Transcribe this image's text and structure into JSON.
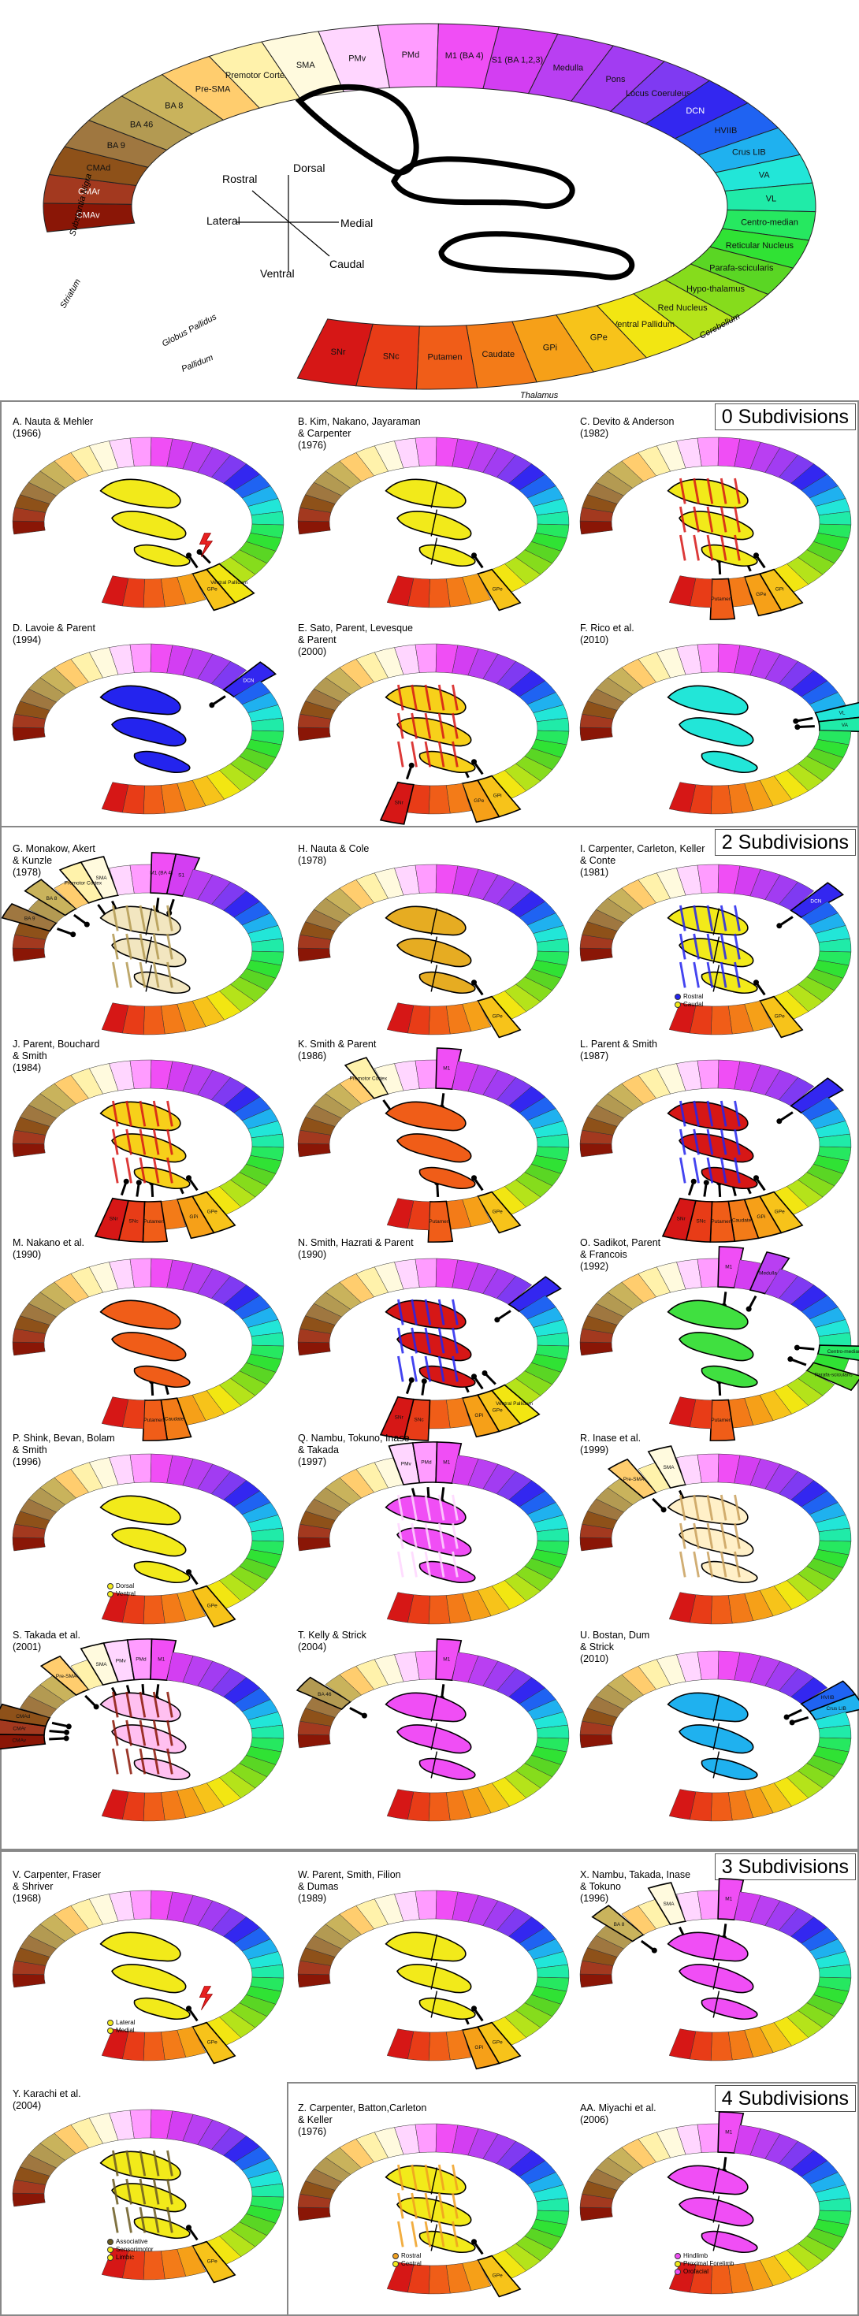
{
  "ring_regions": [
    {
      "id": "cmav",
      "label": "CMAv",
      "color": "#8a1606"
    },
    {
      "id": "cmar",
      "label": "CMAr",
      "color": "#a3391f"
    },
    {
      "id": "cmad",
      "label": "CMAd",
      "color": "#8e5119"
    },
    {
      "id": "ba9",
      "label": "BA 9",
      "color": "#9f7740"
    },
    {
      "id": "ba46",
      "label": "BA 46",
      "color": "#b39a52"
    },
    {
      "id": "ba8",
      "label": "BA 8",
      "color": "#c9b35c"
    },
    {
      "id": "presma",
      "label": "Pre-SMA",
      "color": "#ffcd6e"
    },
    {
      "id": "premotor",
      "label": "Premotor Cortex",
      "color": "#fff2ab"
    },
    {
      "id": "sma",
      "label": "SMA",
      "color": "#fffade"
    },
    {
      "id": "pmv",
      "label": "PMv",
      "color": "#ffd6ff"
    },
    {
      "id": "pmd",
      "label": "PMd",
      "color": "#ff9cff"
    },
    {
      "id": "m1",
      "label": "M1 (BA 4)",
      "color": "#f04ef5"
    },
    {
      "id": "s1",
      "label": "S1 (BA 1,2,3)",
      "color": "#d33ef2"
    },
    {
      "id": "medulla",
      "label": "Medulla",
      "color": "#b93ff2"
    },
    {
      "id": "pons",
      "label": "Pons",
      "color": "#a23cf2"
    },
    {
      "id": "locus",
      "label": "Locus Coeruleus",
      "color": "#7f3af2"
    },
    {
      "id": "dcn",
      "label": "DCN",
      "color": "#3327f0"
    },
    {
      "id": "hviib",
      "label": "HVIIB",
      "color": "#1f63f2"
    },
    {
      "id": "cruslib",
      "label": "Crus LIB",
      "color": "#1fb1ef"
    },
    {
      "id": "va",
      "label": "VA",
      "color": "#22e6d8"
    },
    {
      "id": "vl",
      "label": "VL",
      "color": "#20eba8"
    },
    {
      "id": "centromedian",
      "label": "Centro-median",
      "color": "#26e860"
    },
    {
      "id": "reticular",
      "label": "Reticular Nucleus",
      "color": "#30e234"
    },
    {
      "id": "parafascicularis",
      "label": "Parafa-scicularis",
      "color": "#5ad624"
    },
    {
      "id": "hypothalamus",
      "label": "Hypo-thalamus",
      "color": "#86dc1c"
    },
    {
      "id": "rednucleus",
      "label": "Red Nucleus",
      "color": "#b5e31a"
    },
    {
      "id": "ventralpallidum",
      "label": "Ventral Pallidum",
      "color": "#f2e612"
    },
    {
      "id": "gpe",
      "label": "GPe",
      "color": "#f7c31a"
    },
    {
      "id": "gpi",
      "label": "GPi",
      "color": "#f6a018"
    },
    {
      "id": "caudate",
      "label": "Caudate",
      "color": "#f37b18"
    },
    {
      "id": "putamen",
      "label": "Putamen",
      "color": "#f05d18"
    },
    {
      "id": "snc",
      "label": "SNc",
      "color": "#e83c17"
    },
    {
      "id": "snr",
      "label": "SNr",
      "color": "#d61716"
    }
  ],
  "ring_groups": {
    "substantia_nigra": "Substantia Nigra",
    "striatum": "Striatum",
    "globus_pallidus": "Globus Pallidus",
    "pallidum": "Pallidum",
    "thalamus": "Thalamus",
    "cerebellum": "Cerebellum"
  },
  "orientation": {
    "rostral": "Rostral",
    "dorsal": "Dorsal",
    "lateral": "Lateral",
    "medial": "Medial",
    "ventral": "Ventral",
    "caudal": "Caudal"
  },
  "sections": [
    {
      "title": "0 Subdivisions"
    },
    {
      "title": "2 Subdivisions"
    },
    {
      "title": "3 Subdivisions"
    },
    {
      "title": "4 Subdivisions"
    }
  ],
  "panels": [
    {
      "caption": "A. Nauta & Mehler\n(1966)",
      "stn": "#f2ea1a",
      "sources": [
        "gpe",
        "ventralpallidum"
      ],
      "lesion": true,
      "labels": [
        "GPe",
        "Ventral Pallidum"
      ]
    },
    {
      "caption": "B. Kim, Nakano, Jayaraman\n& Carpenter\n(1976)",
      "stn": "#f2ea1a",
      "sources": [
        "gpe"
      ],
      "labels": [
        "GPe"
      ],
      "split": true
    },
    {
      "caption": "C. Devito & Anderson\n(1982)",
      "stn": "#f2ea1a",
      "sources": [
        "putamen",
        "gpe",
        "gpi"
      ],
      "labels": [
        "Putamen",
        "GPi",
        "GPe"
      ],
      "stripe": "#d61716"
    },
    {
      "caption": "D. Lavoie & Parent\n(1994)",
      "stn": "#2424ee",
      "sources": [
        "dcn"
      ],
      "labels": [
        "DCN"
      ]
    },
    {
      "caption": "E. Sato, Parent, Levesque\n& Parent\n(2000)",
      "stn": "#f7d01a",
      "sources": [
        "snr",
        "gpe",
        "gpi"
      ],
      "labels": [
        "SNr",
        "GPi",
        "GPe"
      ],
      "stripe": "#d61716"
    },
    {
      "caption": "F. Rico et al.\n(2010)",
      "stn": "#22e6d8",
      "sources": [
        "va",
        "vl"
      ],
      "labels": [
        "VL",
        "VA"
      ]
    },
    {
      "caption": "G. Monakow, Akert\n& Kunzle\n(1978)",
      "stn": "#f2e6c0",
      "sources": [
        "ba8",
        "ba9",
        "premotor",
        "sma",
        "m1",
        "s1"
      ],
      "labels": [
        "BA 8",
        "BA 9",
        "Premotor Cortex",
        "SMA",
        "M1 (BA 4)",
        "S1"
      ],
      "stripe": "#b39a52",
      "split": true
    },
    {
      "caption": "H. Nauta & Cole\n(1978)",
      "stn": "#e6ac22",
      "sources": [
        "gpe"
      ],
      "labels": [
        "GPe"
      ],
      "split": true
    },
    {
      "caption": "I. Carpenter, Carleton, Keller\n& Conte\n(1981)",
      "stn": "#f2ea1a",
      "sources": [
        "gpe",
        "dcn"
      ],
      "labels": [
        "GPe",
        "DCN"
      ],
      "stripe": "#2424ee",
      "legend": [
        "Rostral",
        "Caudal"
      ],
      "split": true
    },
    {
      "caption": "J. Parent, Bouchard\n& Smith\n(1984)",
      "stn": "#f7d01a",
      "sources": [
        "snr",
        "snc",
        "putamen",
        "gpi",
        "gpe"
      ],
      "labels": [
        "SNr",
        "SNc",
        "Putamen",
        "GPi",
        "GPe"
      ],
      "stripe": "#d61716"
    },
    {
      "caption": "K. Smith & Parent\n(1986)",
      "stn": "#f05d18",
      "sources": [
        "premotor",
        "m1",
        "putamen",
        "gpe"
      ],
      "labels": [
        "Premotor Cortex",
        "M1",
        "Putamen",
        "GPe"
      ]
    },
    {
      "caption": "L. Parent & Smith\n(1987)",
      "stn": "#d61716",
      "sources": [
        "snr",
        "snc",
        "putamen",
        "caudate",
        "gpi",
        "gpe",
        "dcn"
      ],
      "labels": [
        "SNr",
        "SNc",
        "Putamen",
        "Caudate",
        "GPi",
        "GPe"
      ],
      "stripe": "#2424ee"
    },
    {
      "caption": "M. Nakano et al.\n(1990)",
      "stn": "#f05d18",
      "sources": [
        "putamen",
        "caudate"
      ],
      "labels": [
        "Putamen",
        "Caudate"
      ]
    },
    {
      "caption": "N. Smith, Hazrati & Parent\n(1990)",
      "stn": "#d61716",
      "sources": [
        "snr",
        "snc",
        "gpi",
        "gpe",
        "ventralpallidum",
        "dcn"
      ],
      "labels": [
        "SNr",
        "SNc",
        "GPi",
        "GPe",
        "Ventral Pallidum"
      ],
      "stripe": "#2424ee"
    },
    {
      "caption": "O. Sadikot, Parent\n& Francois\n(1992)",
      "stn": "#40e040",
      "sources": [
        "m1",
        "medulla",
        "parafascicularis",
        "centromedian",
        "putamen"
      ],
      "labels": [
        "M1",
        "Medulla",
        "Parafa-scicularis",
        "Centro-median",
        "Putamen"
      ]
    },
    {
      "caption": "P. Shink, Bevan, Bolam\n& Smith\n(1996)",
      "stn": "#f2ea1a",
      "sources": [
        "gpe"
      ],
      "labels": [
        "GPe"
      ],
      "legend": [
        "Dorsal",
        "Ventral"
      ]
    },
    {
      "caption": "Q. Nambu, Tokuno, Inase\n& Takada\n(1997)",
      "stn": "#f04ef5",
      "sources": [
        "pmv",
        "pmd",
        "m1"
      ],
      "labels": [
        "PMv",
        "PMd",
        "M1"
      ],
      "stripe": "#ffd6ff"
    },
    {
      "caption": "R. Inase et al.\n(1999)",
      "stn": "#fff0c8",
      "sources": [
        "presma",
        "sma"
      ],
      "labels": [
        "Pre-SMA",
        "SMA"
      ],
      "stripe": "#c9a15c"
    },
    {
      "caption": "S. Takada et al.\n(2001)",
      "stn": "#ffc0f0",
      "sources": [
        "cmad",
        "cmar",
        "cmav",
        "presma",
        "sma",
        "pmv",
        "pmd",
        "m1"
      ],
      "labels": [
        "CMAd",
        "CMAr",
        "CMAv",
        "Pre-SMA",
        "SMA",
        "PMv",
        "PMd",
        "M1"
      ],
      "stripe": "#8a1606"
    },
    {
      "caption": "T. Kelly & Strick\n(2004)",
      "stn": "#f04ef5",
      "sources": [
        "ba46",
        "m1"
      ],
      "labels": [
        "BA 46",
        "M1"
      ],
      "split": true
    },
    {
      "caption": "U. Bostan, Dum\n& Strick\n(2010)",
      "stn": "#1fb1ef",
      "sources": [
        "hviib",
        "cruslib"
      ],
      "labels": [
        "HVIIB",
        "Crus LIB"
      ],
      "split": true
    },
    {
      "caption": "V. Carpenter, Fraser\n& Shriver\n(1968)",
      "stn": "#f2ea1a",
      "sources": [
        "gpe"
      ],
      "labels": [
        "GPe"
      ],
      "lesion": true,
      "legend": [
        "Lateral",
        "Medial"
      ]
    },
    {
      "caption": "W. Parent, Smith, Filion\n& Dumas\n(1989)",
      "stn": "#f2ea1a",
      "sources": [
        "gpi",
        "gpe"
      ],
      "labels": [
        "GPi",
        "GPe"
      ],
      "split": true
    },
    {
      "caption": "X. Nambu, Takada, Inase\n& Tokuno\n(1996)",
      "stn": "#f04ef5",
      "sources": [
        "ba8",
        "sma",
        "m1"
      ],
      "labels": [
        "BA 8",
        "SMA",
        "M1"
      ],
      "split": true
    },
    {
      "caption": "Y. Karachi et al.\n(2004)",
      "stn": "#f2ea1a",
      "sources": [
        "gpe"
      ],
      "labels": [
        "GPe"
      ],
      "stripe": "#6a5a20",
      "legend": [
        "Associative",
        "Sensorimotor",
        "Limbic"
      ]
    },
    {
      "caption": "Z. Carpenter, Batton,Carleton\n& Keller\n(1976)",
      "stn": "#f2ea1a",
      "sources": [
        "gpe"
      ],
      "labels": [
        "GPe"
      ],
      "stripe": "#f0a020",
      "legend": [
        "Rostral",
        "Central"
      ],
      "split": true
    },
    {
      "caption": "AA. Miyachi et al.\n(2006)",
      "stn": "#f04ef5",
      "sources": [
        "m1"
      ],
      "labels": [
        "M1"
      ],
      "legend": [
        "Hindlimb",
        "Proximal Forelimb",
        "Orofacial"
      ],
      "split": true
    }
  ]
}
